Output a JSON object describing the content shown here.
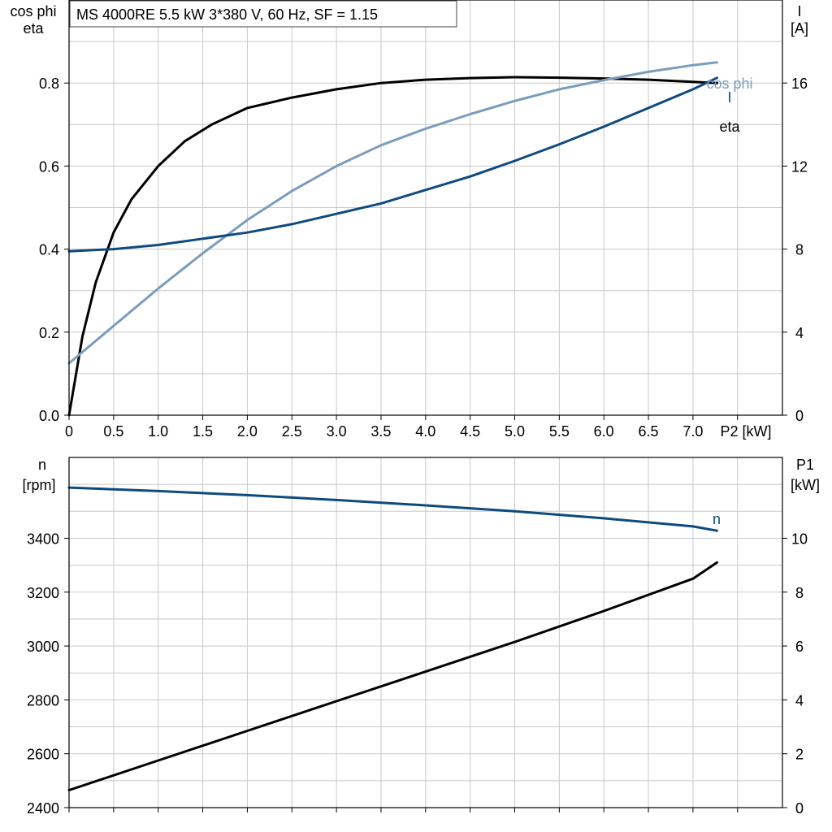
{
  "title": "MS 4000RE   5.5 kW   3*380 V, 60 Hz, SF = 1.15",
  "colors": {
    "eta": "#000000",
    "cos_phi": "#7a9dbd",
    "I": "#0f4a7e",
    "n": "#0f4a7e",
    "P1": "#000000"
  },
  "chart_data": [
    {
      "type": "line",
      "xlabel": "P2 [kW]",
      "xlim": [
        0,
        8
      ],
      "x_ticks": [
        "0",
        "0.5",
        "1.0",
        "1.5",
        "2.0",
        "2.5",
        "3.0",
        "3.5",
        "4.0",
        "4.5",
        "5.0",
        "5.5",
        "6.0",
        "6.5",
        "7.0"
      ],
      "left_axis": {
        "label_line1": "cos phi",
        "label_line2": "eta",
        "lim": [
          0,
          1.0
        ],
        "ticks": [
          "0.0",
          "0.2",
          "0.4",
          "0.6",
          "0.8"
        ]
      },
      "right_axis": {
        "label_line1": "I",
        "label_line2": "[A]",
        "lim": [
          0,
          20
        ],
        "ticks": [
          "0",
          "4",
          "8",
          "12",
          "16"
        ]
      },
      "grid": true,
      "series": [
        {
          "name": "eta",
          "axis": "left",
          "x": [
            0,
            0.15,
            0.3,
            0.5,
            0.7,
            1.0,
            1.3,
            1.6,
            2.0,
            2.5,
            3.0,
            3.5,
            4.0,
            4.5,
            5.0,
            5.5,
            6.0,
            6.5,
            7.0,
            7.27
          ],
          "y": [
            0.0,
            0.19,
            0.32,
            0.44,
            0.52,
            0.6,
            0.66,
            0.7,
            0.74,
            0.765,
            0.785,
            0.8,
            0.808,
            0.812,
            0.814,
            0.813,
            0.811,
            0.808,
            0.803,
            0.8
          ]
        },
        {
          "name": "cos phi",
          "axis": "left",
          "x": [
            0,
            0.5,
            1.0,
            1.5,
            2.0,
            2.5,
            3.0,
            3.5,
            4.0,
            4.5,
            5.0,
            5.5,
            6.0,
            6.5,
            7.0,
            7.27
          ],
          "y": [
            0.125,
            0.215,
            0.305,
            0.39,
            0.47,
            0.54,
            0.6,
            0.65,
            0.69,
            0.725,
            0.757,
            0.785,
            0.807,
            0.827,
            0.843,
            0.85
          ]
        },
        {
          "name": "I",
          "axis": "right",
          "x": [
            0,
            0.5,
            1.0,
            1.5,
            2.0,
            2.5,
            3.0,
            3.5,
            4.0,
            4.5,
            5.0,
            5.5,
            6.0,
            6.5,
            7.0,
            7.27
          ],
          "y": [
            7.9,
            8.0,
            8.2,
            8.5,
            8.8,
            9.2,
            9.7,
            10.2,
            10.85,
            11.5,
            12.25,
            13.05,
            13.9,
            14.8,
            15.7,
            16.25
          ]
        }
      ]
    },
    {
      "type": "line",
      "xlim": [
        0,
        8
      ],
      "left_axis": {
        "label_line1": "n",
        "label_line2": "[rpm]",
        "lim": [
          2400,
          3700
        ],
        "ticks": [
          "2400",
          "2600",
          "2800",
          "3000",
          "3200",
          "3400"
        ]
      },
      "right_axis": {
        "label_line1": "P1",
        "label_line2": "[kW]",
        "lim": [
          0,
          13
        ],
        "ticks": [
          "0",
          "2",
          "4",
          "6",
          "8",
          "10"
        ]
      },
      "grid": true,
      "series": [
        {
          "name": "n",
          "axis": "left",
          "x": [
            0,
            1.0,
            2.0,
            3.0,
            4.0,
            5.0,
            6.0,
            7.0,
            7.27
          ],
          "y": [
            3588,
            3575,
            3560,
            3542,
            3522,
            3500,
            3474,
            3444,
            3428
          ]
        },
        {
          "name": "P1",
          "axis": "right",
          "x": [
            0,
            1.0,
            2.0,
            3.0,
            4.0,
            5.0,
            6.0,
            7.0,
            7.27
          ],
          "y": [
            0.65,
            1.75,
            2.85,
            3.95,
            5.05,
            6.15,
            7.3,
            8.5,
            9.1
          ]
        }
      ]
    }
  ]
}
